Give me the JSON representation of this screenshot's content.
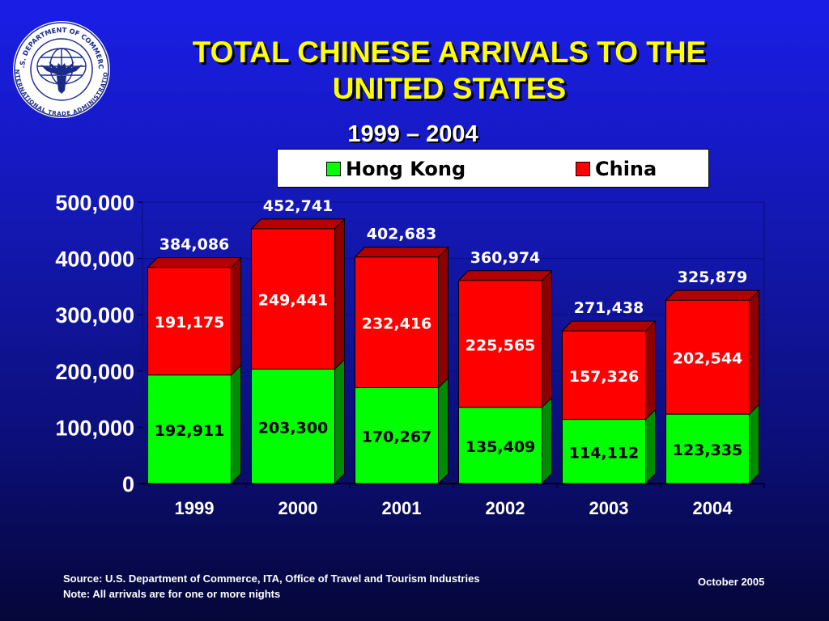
{
  "title_line1": "TOTAL CHINESE ARRIVALS TO THE",
  "title_line2": "UNITED STATES",
  "subtitle": "1999 – 2004",
  "logo": {
    "text_top": "U.S. DEPARTMENT OF COMMERCE",
    "text_bottom": "INTERNATIONAL TRADE ADMINISTRATION",
    "icon": "eagle-globe-seal"
  },
  "colors": {
    "hong_kong": "#00ff00",
    "china": "#ff0000",
    "title": "#ffff00"
  },
  "chart_data": {
    "type": "bar",
    "stacked": true,
    "categories": [
      "1999",
      "2000",
      "2001",
      "2002",
      "2003",
      "2004"
    ],
    "series": [
      {
        "name": "Hong Kong",
        "values": [
          192911,
          203300,
          170267,
          135409,
          114112,
          123335
        ],
        "labels": [
          "192,911",
          "203,300",
          "170,267",
          "135,409",
          "114,112",
          "123,335"
        ]
      },
      {
        "name": "China",
        "values": [
          191175,
          249441,
          232416,
          225565,
          157326,
          202544
        ],
        "labels": [
          "191,175",
          "249,441",
          "232,416",
          "225,565",
          "157,326",
          "202,544"
        ]
      }
    ],
    "totals": [
      384086,
      452741,
      402683,
      360974,
      271438,
      325879
    ],
    "total_labels": [
      "384,086",
      "452,741",
      "402,683",
      "360,974",
      "271,438",
      "325,879"
    ],
    "ylim": [
      0,
      500000
    ],
    "yticks": [
      0,
      100000,
      200000,
      300000,
      400000,
      500000
    ],
    "ytick_labels": [
      "0",
      "100,000",
      "200,000",
      "300,000",
      "400,000",
      "500,000"
    ],
    "legend_position": "top-right"
  },
  "footer": {
    "source": "Source: U.S. Department of Commerce, ITA, Office of Travel and Tourism Industries",
    "note": "Note:  All arrivals are for one or more nights",
    "date": "October 2005"
  }
}
